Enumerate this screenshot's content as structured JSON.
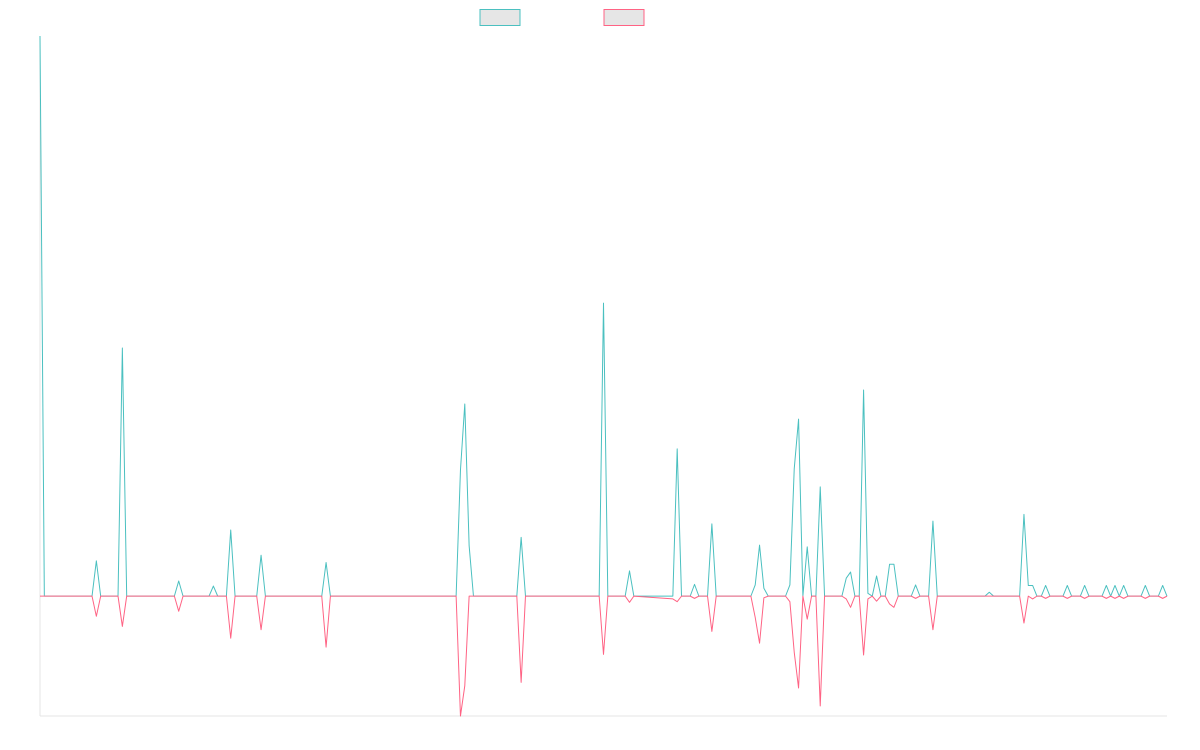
{
  "chart_data": {
    "type": "line",
    "x": [
      0,
      1,
      12,
      13,
      14,
      18,
      19,
      20,
      31,
      32,
      33,
      39,
      40,
      41,
      43,
      44,
      45,
      50,
      51,
      52,
      65,
      66,
      67,
      96,
      97,
      98,
      99,
      100,
      110,
      111,
      112,
      129,
      130,
      131,
      135,
      136,
      137,
      146,
      147,
      148,
      150,
      151,
      152,
      154,
      155,
      156,
      164,
      165,
      166,
      167,
      168,
      172,
      173,
      174,
      175,
      176,
      177,
      178,
      179,
      180,
      181,
      185,
      186,
      187,
      188,
      189,
      190,
      191,
      192,
      193,
      194,
      195,
      196,
      197,
      198,
      201,
      202,
      203,
      205,
      206,
      207,
      218,
      219,
      220,
      226,
      227,
      228,
      229,
      230,
      231,
      232,
      233,
      236,
      237,
      238,
      240,
      241,
      242,
      245,
      246,
      247,
      248,
      249,
      250,
      251,
      254,
      255,
      256,
      258,
      259,
      260
    ],
    "series": [
      {
        "color": "#4bc0c0",
        "values": [
          100,
          0,
          0,
          6.3,
          0,
          0,
          44.3,
          0,
          0,
          2.7,
          0,
          0,
          1.8,
          0,
          0,
          11.8,
          0,
          0,
          7.3,
          0,
          0,
          6,
          0,
          0,
          22.5,
          34.3,
          9,
          0,
          0,
          10.5,
          0,
          0,
          52.3,
          0,
          0,
          4.5,
          0,
          0,
          26.3,
          0,
          0,
          2.1,
          0,
          0,
          12.9,
          0,
          0,
          2,
          9.1,
          1.4,
          0,
          0,
          2,
          22.7,
          31.6,
          0,
          8.8,
          0,
          0,
          19.5,
          0,
          0,
          3.2,
          4.3,
          0,
          0,
          36.8,
          0.5,
          0,
          3.6,
          0,
          0,
          5.7,
          5.7,
          0,
          0,
          2,
          0,
          0,
          13.4,
          0,
          0,
          0.7,
          0,
          0,
          14.6,
          1.9,
          1.9,
          0,
          0,
          1.9,
          0,
          0,
          1.9,
          0,
          0,
          1.9,
          0,
          0,
          1.9,
          0,
          1.9,
          0,
          1.9,
          0,
          0,
          1.9,
          0,
          0,
          1.9,
          0
        ]
      },
      {
        "color": "#ff6384",
        "values": [
          0,
          0,
          0,
          -3.6,
          0,
          0,
          -5.4,
          0,
          0,
          -2.7,
          0,
          0,
          0,
          0,
          0,
          -7.5,
          0,
          0,
          -6,
          0,
          0,
          -9.1,
          0,
          0,
          -21.4,
          -16,
          0,
          0,
          0,
          -15.4,
          0,
          0,
          -10.4,
          0,
          0,
          -1.1,
          0,
          -0.5,
          -1,
          0,
          0,
          -0.4,
          0,
          0,
          -6.3,
          0,
          0,
          -3.8,
          -8.4,
          -0.3,
          0,
          0,
          -1,
          -10,
          -16.4,
          0,
          -4.1,
          0,
          0,
          -19.6,
          0,
          0,
          -0.5,
          -2,
          0,
          0,
          -10.5,
          -0.5,
          0,
          -0.9,
          0,
          0,
          -1.4,
          -2,
          0,
          0,
          -0.4,
          0,
          0,
          -6,
          0,
          0,
          0,
          0,
          0,
          -4.8,
          0,
          -0.5,
          0,
          0,
          -0.4,
          0,
          0,
          -0.4,
          0,
          0,
          -0.4,
          0,
          0,
          -0.4,
          0,
          -0.4,
          0,
          -0.4,
          0,
          0,
          -0.4,
          0,
          0,
          -0.4,
          0
        ]
      }
    ],
    "xlim": [
      0,
      260
    ],
    "ylim": [
      -21.4,
      100
    ]
  }
}
